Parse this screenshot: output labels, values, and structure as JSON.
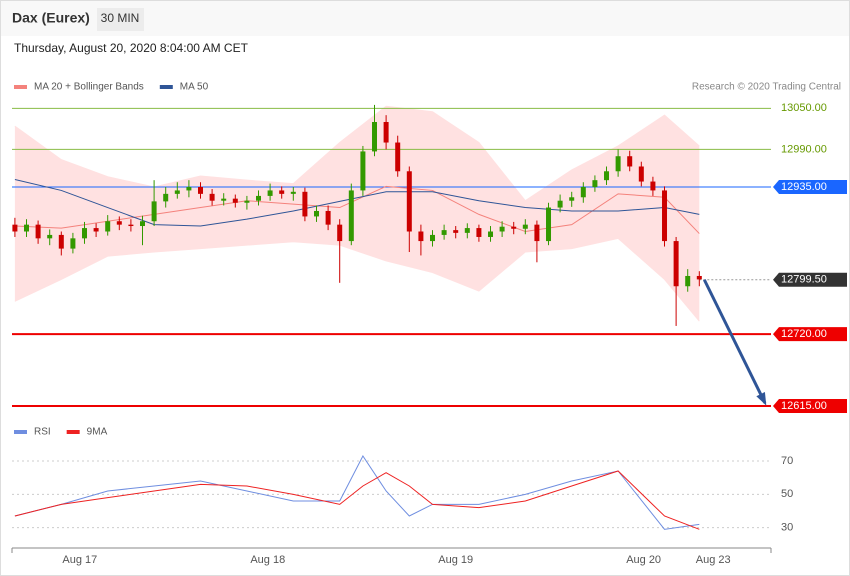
{
  "header": {
    "title": "Dax (Eurex)",
    "interval": "30 MIN",
    "date": "Thursday, August 20, 2020 8:04:00 AM CET",
    "credit": "Research © 2020 Trading Central"
  },
  "chart_data": [
    {
      "type": "candlestick",
      "up_color": "#339900",
      "down_color": "#cc0000",
      "xlim": [
        -0.25,
        65.18
      ],
      "ylim": [
        12596,
        13068
      ],
      "ohlc": [
        [
          12880,
          12890,
          12862,
          12870
        ],
        [
          12870,
          12888,
          12862,
          12880
        ],
        [
          12880,
          12886,
          12852,
          12860
        ],
        [
          12860,
          12873,
          12850,
          12865
        ],
        [
          12865,
          12870,
          12835,
          12845
        ],
        [
          12845,
          12868,
          12838,
          12860
        ],
        [
          12860,
          12884,
          12852,
          12875
        ],
        [
          12875,
          12882,
          12862,
          12870
        ],
        [
          12870,
          12894,
          12864,
          12885
        ],
        [
          12885,
          12892,
          12872,
          12880
        ],
        [
          12880,
          12888,
          12870,
          12878
        ],
        [
          12878,
          12893,
          12850,
          12885
        ],
        [
          12885,
          12945,
          12878,
          12914
        ],
        [
          12914,
          12935,
          12905,
          12925
        ],
        [
          12925,
          12942,
          12918,
          12930
        ],
        [
          12930,
          12945,
          12920,
          12935
        ],
        [
          12935,
          12942,
          12918,
          12925
        ],
        [
          12925,
          12932,
          12908,
          12915
        ],
        [
          12915,
          12926,
          12908,
          12918
        ],
        [
          12918,
          12924,
          12905,
          12912
        ],
        [
          12912,
          12922,
          12902,
          12915
        ],
        [
          12915,
          12930,
          12908,
          12922
        ],
        [
          12922,
          12940,
          12915,
          12930
        ],
        [
          12930,
          12936,
          12918,
          12925
        ],
        [
          12925,
          12935,
          12915,
          12928
        ],
        [
          12928,
          12934,
          12885,
          12892
        ],
        [
          12892,
          12908,
          12884,
          12900
        ],
        [
          12900,
          12908,
          12872,
          12880
        ],
        [
          12880,
          12888,
          12795,
          12856
        ],
        [
          12856,
          12940,
          12850,
          12930
        ],
        [
          12930,
          12995,
          12922,
          12987
        ],
        [
          12987,
          13055,
          12980,
          13030
        ],
        [
          13030,
          13040,
          12990,
          13000
        ],
        [
          13000,
          13010,
          12950,
          12958
        ],
        [
          12958,
          12965,
          12840,
          12870
        ],
        [
          12870,
          12880,
          12835,
          12856
        ],
        [
          12856,
          12872,
          12848,
          12865
        ],
        [
          12865,
          12880,
          12858,
          12872
        ],
        [
          12872,
          12878,
          12860,
          12868
        ],
        [
          12868,
          12882,
          12860,
          12875
        ],
        [
          12875,
          12880,
          12855,
          12862
        ],
        [
          12862,
          12878,
          12855,
          12870
        ],
        [
          12870,
          12885,
          12862,
          12877
        ],
        [
          12877,
          12884,
          12866,
          12874
        ],
        [
          12874,
          12888,
          12866,
          12880
        ],
        [
          12880,
          12886,
          12825,
          12856
        ],
        [
          12856,
          12912,
          12850,
          12905
        ],
        [
          12905,
          12924,
          12898,
          12915
        ],
        [
          12915,
          12928,
          12906,
          12920
        ],
        [
          12920,
          12942,
          12912,
          12935
        ],
        [
          12935,
          12952,
          12928,
          12945
        ],
        [
          12945,
          12965,
          12938,
          12958
        ],
        [
          12958,
          12990,
          12950,
          12980
        ],
        [
          12980,
          12988,
          12958,
          12965
        ],
        [
          12965,
          12972,
          12936,
          12943
        ],
        [
          12943,
          12950,
          12922,
          12930
        ],
        [
          12930,
          12936,
          12848,
          12856
        ],
        [
          12856,
          12862,
          12732,
          12790
        ],
        [
          12790,
          12815,
          12782,
          12805
        ],
        [
          12805,
          12812,
          12790,
          12800
        ]
      ],
      "x": [
        0,
        4,
        8,
        12,
        16,
        20,
        24,
        28,
        32,
        36,
        40,
        44,
        48,
        52,
        56,
        59
      ],
      "series": [
        {
          "name": "MA 20 + Bollinger Bands",
          "color": "#f4827c",
          "band_color": "#ffe1e1",
          "values": [
            12878,
            12875,
            12885,
            12895,
            12905,
            12915,
            12910,
            12905,
            12936,
            12930,
            12895,
            12870,
            12880,
            12925,
            12920,
            12867
          ],
          "upper": [
            13024,
            12975,
            12950,
            12935,
            12951,
            12945,
            12940,
            13000,
            13053,
            13045,
            13000,
            12915,
            12960,
            12995,
            13040,
            12995
          ],
          "lower": [
            12768,
            12800,
            12834,
            12840,
            12845,
            12850,
            12855,
            12850,
            12827,
            12810,
            12783,
            12840,
            12845,
            12860,
            12800,
            12739
          ]
        },
        {
          "name": "MA 50",
          "color": "#2f5597",
          "values": [
            12946,
            12930,
            12905,
            12880,
            12878,
            12888,
            12900,
            12914,
            12928,
            12928,
            12915,
            12905,
            12900,
            12900,
            12905,
            12895
          ]
        }
      ],
      "levels": [
        {
          "value": 13050,
          "label": "13050.00",
          "color": "#88bb44",
          "style": "text",
          "line": "solid"
        },
        {
          "value": 12990,
          "label": "12990.00",
          "color": "#88bb44",
          "style": "text",
          "line": "solid"
        },
        {
          "value": 12935,
          "label": "12935.00",
          "color": "#1a66ff",
          "style": "box",
          "line": "solid"
        },
        {
          "value": 12799.5,
          "label": "12799.50",
          "color": "#333333",
          "style": "box",
          "line": "dotted"
        },
        {
          "value": 12720,
          "label": "12720.00",
          "color": "#ee0000",
          "style": "box",
          "line": "thick"
        },
        {
          "value": 12615,
          "label": "12615.00",
          "color": "#ee0000",
          "style": "box",
          "line": "thick"
        }
      ]
    },
    {
      "type": "line",
      "xlim": [
        -0.25,
        65.18
      ],
      "ylim": [
        19,
        79
      ],
      "yticks": [
        30,
        50,
        70
      ],
      "xticks": [
        {
          "value": 5.6,
          "label": "Aug 17"
        },
        {
          "value": 21.8,
          "label": "Aug 18"
        },
        {
          "value": 38,
          "label": "Aug 19"
        },
        {
          "value": 54.2,
          "label": "Aug 20"
        },
        {
          "value": 60.2,
          "label": "Aug 23"
        }
      ],
      "x": [
        0,
        4,
        8,
        12,
        16,
        20,
        24,
        28,
        30,
        32,
        34,
        36,
        40,
        44,
        48,
        52,
        56,
        59
      ],
      "series": [
        {
          "name": "RSI",
          "color": "#6f8ee0",
          "values": [
            37,
            44,
            52,
            55,
            58,
            52,
            46,
            46,
            73,
            52,
            37,
            44,
            44,
            50,
            58,
            64,
            29,
            32
          ]
        },
        {
          "name": "9MA",
          "color": "#ee2222",
          "values": [
            37,
            44,
            48,
            52,
            56,
            55,
            50,
            44,
            55,
            63,
            55,
            44,
            42,
            46,
            55,
            64,
            37,
            29
          ]
        }
      ]
    }
  ]
}
